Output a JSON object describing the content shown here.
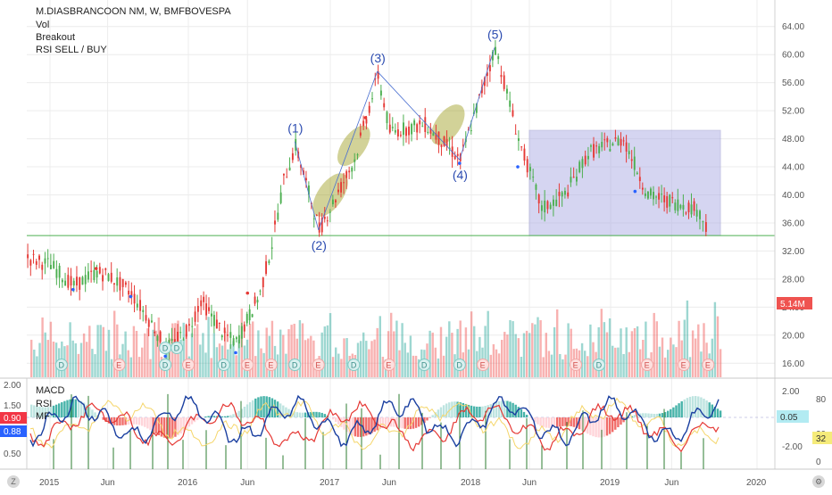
{
  "header": {
    "symbol_line": "M.DIASBRANCOON NM, W, BMFBOVESPA",
    "indicators": [
      "Vol",
      "Breakout",
      "RSI SELL / BUY"
    ]
  },
  "lower_pane": {
    "legend": [
      "MACD",
      "RSI",
      "MF"
    ],
    "left_ticks": [
      "2.00",
      "1.50",
      "0.50"
    ],
    "left_badges": [
      {
        "text": "0.90",
        "color": "#f23645"
      },
      {
        "text": "0.88",
        "color": "#2962ff"
      }
    ],
    "right_ticks": [
      "2.00",
      "-2.00"
    ],
    "right_badge": "0.05",
    "far_right_ticks": [
      "80",
      "20",
      "0"
    ],
    "far_right_badge": "32"
  },
  "price_badge": "5.14M",
  "bottom_icons": [
    "Z",
    "gear-icon"
  ],
  "colors": {
    "up": "#26a69a",
    "down": "#ef5350",
    "green_candle": "#4caf50",
    "red_candle": "#e53935",
    "zone_fill": "#b3b3e6",
    "ellipse_fill": "#9c9c1a",
    "wave_label": "#2b4bb0",
    "support_line": "#4caf50"
  },
  "chart_data": {
    "type": "candlestick",
    "title": "M.DIASBRANCOON NM, W, BMFBOVESPA",
    "ylim": [
      14,
      66
    ],
    "y_ticks": [
      16,
      20,
      24,
      28,
      32,
      36,
      40,
      44,
      48,
      52,
      56,
      60,
      64
    ],
    "y_tick_labels": [
      "16.00",
      "20.00",
      "24.00",
      "28.00",
      "32.00",
      "36.00",
      "40.00",
      "44.00",
      "48.00",
      "52.00",
      "56.00",
      "60.00",
      "64.00"
    ],
    "x_ticks": [
      "2015",
      "Jun",
      "2016",
      "Jun",
      "2017",
      "Jun",
      "2018",
      "Jun",
      "2019",
      "Jun",
      "2020"
    ],
    "support_level": 34.2,
    "range_box": {
      "start": "2018-06",
      "end": "2019-10",
      "low": 34.2,
      "high": 49.2
    },
    "elliott_waves": [
      {
        "label": "(1)",
        "date": "2016-10",
        "price": 47.6
      },
      {
        "label": "(2)",
        "date": "2016-12",
        "price": 35.0
      },
      {
        "label": "(3)",
        "date": "2017-05",
        "price": 57.6
      },
      {
        "label": "(4)",
        "date": "2017-12",
        "price": 45.0
      },
      {
        "label": "(5)",
        "date": "2018-03",
        "price": 61.0
      }
    ],
    "price_path": [
      {
        "date": "2014-11",
        "price": 31
      },
      {
        "date": "2015-01",
        "price": 30
      },
      {
        "date": "2015-03",
        "price": 27
      },
      {
        "date": "2015-05",
        "price": 29
      },
      {
        "date": "2015-06",
        "price": 28.5
      },
      {
        "date": "2015-08",
        "price": 26
      },
      {
        "date": "2015-10",
        "price": 21
      },
      {
        "date": "2015-11",
        "price": 18
      },
      {
        "date": "2016-01",
        "price": 21
      },
      {
        "date": "2016-02",
        "price": 25
      },
      {
        "date": "2016-04",
        "price": 20
      },
      {
        "date": "2016-05",
        "price": 19
      },
      {
        "date": "2016-07",
        "price": 26
      },
      {
        "date": "2016-08",
        "price": 33
      },
      {
        "date": "2016-09",
        "price": 42
      },
      {
        "date": "2016-10",
        "price": 47
      },
      {
        "date": "2016-12",
        "price": 35
      },
      {
        "date": "2017-03",
        "price": 45
      },
      {
        "date": "2017-05",
        "price": 57
      },
      {
        "date": "2017-06",
        "price": 49
      },
      {
        "date": "2017-09",
        "price": 50
      },
      {
        "date": "2017-12",
        "price": 45
      },
      {
        "date": "2018-03",
        "price": 61
      },
      {
        "date": "2018-05",
        "price": 48
      },
      {
        "date": "2018-07",
        "price": 38
      },
      {
        "date": "2018-09",
        "price": 40
      },
      {
        "date": "2018-11",
        "price": 46
      },
      {
        "date": "2019-02",
        "price": 48
      },
      {
        "date": "2019-04",
        "price": 40
      },
      {
        "date": "2019-06",
        "price": 39
      },
      {
        "date": "2019-08",
        "price": 38
      },
      {
        "date": "2019-09",
        "price": 35
      }
    ],
    "last_volume": "5.14M",
    "indicators": [
      "Vol",
      "Breakout",
      "RSI SELL / BUY",
      "MACD",
      "RSI",
      "MF"
    ]
  }
}
